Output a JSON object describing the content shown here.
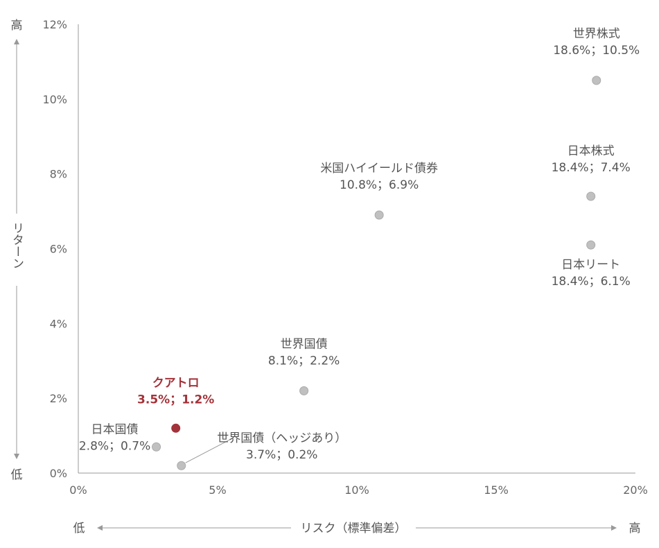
{
  "chart_data": {
    "type": "scatter",
    "title": "",
    "xlabel": "リスク（標準偏差）",
    "ylabel": "リターン",
    "x_low_label": "低",
    "x_high_label": "高",
    "y_low_label": "低",
    "y_high_label": "高",
    "xlim": [
      0,
      20
    ],
    "ylim": [
      0,
      12
    ],
    "x_ticks": [
      0,
      5,
      10,
      15,
      20
    ],
    "y_ticks": [
      0,
      2,
      4,
      6,
      8,
      10,
      12
    ],
    "x_tick_labels": [
      "0%",
      "5%",
      "10%",
      "15%",
      "20%"
    ],
    "y_tick_labels": [
      "0%",
      "2%",
      "4%",
      "6%",
      "8%",
      "10%",
      "12%"
    ],
    "grid": false,
    "colors": {
      "point": "#c0c0c0",
      "highlight": "#a3333a",
      "axis": "#999999"
    },
    "points": [
      {
        "name": "世界株式",
        "value_label": "18.6%；10.5%",
        "x": 18.6,
        "y": 10.5,
        "highlight": false
      },
      {
        "name": "日本株式",
        "value_label": "18.4%；7.4%",
        "x": 18.4,
        "y": 7.4,
        "highlight": false
      },
      {
        "name": "日本リート",
        "value_label": "18.4%；6.1%",
        "x": 18.4,
        "y": 6.1,
        "highlight": false
      },
      {
        "name": "米国ハイイールド債券",
        "value_label": "10.8%；6.9%",
        "x": 10.8,
        "y": 6.9,
        "highlight": false
      },
      {
        "name": "世界国債",
        "value_label": "8.1%；2.2%",
        "x": 8.1,
        "y": 2.2,
        "highlight": false
      },
      {
        "name": "クアトロ",
        "value_label": "3.5%；1.2%",
        "x": 3.5,
        "y": 1.2,
        "highlight": true
      },
      {
        "name": "日本国債",
        "value_label": "2.8%；0.7%",
        "x": 2.8,
        "y": 0.7,
        "highlight": false
      },
      {
        "name": "世界国債（ヘッジあり）",
        "value_label": "3.7%；0.2%",
        "x": 3.7,
        "y": 0.2,
        "highlight": false
      }
    ]
  }
}
